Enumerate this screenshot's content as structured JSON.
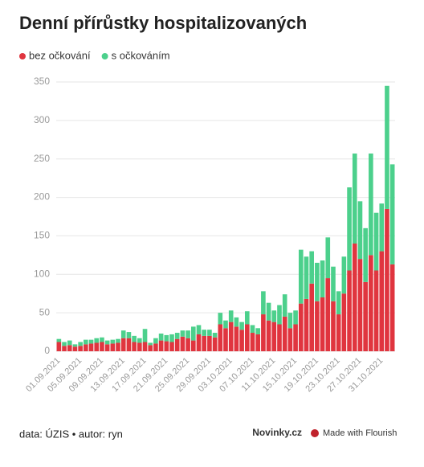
{
  "chart_data": {
    "type": "stacked-bar",
    "title": "Denní přírůstky hospitalizovaných",
    "categories": [
      "01.09.2021",
      null,
      null,
      null,
      "05.09.2021",
      null,
      null,
      null,
      "09.09.2021",
      null,
      null,
      null,
      "13.09.2021",
      null,
      null,
      null,
      "17.09.2021",
      null,
      null,
      null,
      "21.09.2021",
      null,
      null,
      null,
      "25.09.2021",
      null,
      null,
      null,
      "29.09.2021",
      null,
      null,
      null,
      "03.10.2021",
      null,
      null,
      null,
      "07.10.2021",
      null,
      null,
      null,
      "11.10.2021",
      null,
      null,
      null,
      "15.10.2021",
      null,
      null,
      null,
      "19.10.2021",
      null,
      null,
      null,
      "23.10.2021",
      null,
      null,
      null,
      "27.10.2021",
      null,
      null,
      null,
      "31.10.2021",
      null,
      null
    ],
    "series": [
      {
        "name": "bez očkování",
        "color": "#e0353f",
        "values": [
          12,
          7,
          8,
          6,
          7,
          9,
          10,
          11,
          12,
          9,
          10,
          11,
          17,
          17,
          12,
          11,
          12,
          8,
          10,
          14,
          13,
          12,
          16,
          19,
          17,
          14,
          22,
          20,
          20,
          18,
          35,
          30,
          38,
          32,
          28,
          35,
          24,
          22,
          48,
          40,
          38,
          35,
          45,
          30,
          35,
          62,
          68,
          88,
          65,
          70,
          95,
          65,
          48,
          75,
          105,
          140,
          120,
          90,
          125,
          105,
          130,
          185,
          113
        ]
      },
      {
        "name": "s očkováním",
        "color": "#4cd08c",
        "values": [
          4,
          5,
          6,
          3,
          5,
          6,
          5,
          6,
          6,
          5,
          5,
          5,
          10,
          8,
          8,
          6,
          17,
          3,
          7,
          9,
          8,
          10,
          8,
          8,
          10,
          18,
          12,
          8,
          8,
          6,
          15,
          10,
          15,
          12,
          10,
          17,
          10,
          8,
          30,
          23,
          15,
          25,
          29,
          20,
          18,
          70,
          55,
          42,
          50,
          48,
          53,
          45,
          30,
          48,
          108,
          117,
          75,
          70,
          132,
          75,
          62,
          160,
          130
        ]
      }
    ],
    "ylim": [
      0,
      350
    ],
    "yticks": [
      0,
      50,
      100,
      150,
      200,
      250,
      300,
      350
    ],
    "grid": true,
    "legend": "top-left",
    "source": "data: ÚZIS • autor: ryn",
    "brand": "Novinky.cz",
    "credit": "Made with Flourish"
  }
}
